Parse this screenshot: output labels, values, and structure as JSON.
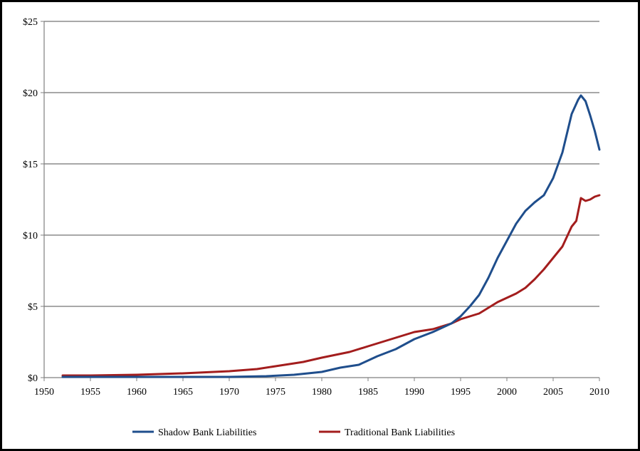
{
  "chart_data": {
    "type": "line",
    "title": "",
    "xlabel": "",
    "ylabel": "",
    "xlim": [
      1950,
      2010
    ],
    "ylim": [
      0,
      25
    ],
    "x_ticks": [
      "1950",
      "1955",
      "1960",
      "1965",
      "1970",
      "1975",
      "1980",
      "1985",
      "1990",
      "1995",
      "2000",
      "2005",
      "2010"
    ],
    "y_ticks": [
      "$0",
      "$5",
      "$10",
      "$15",
      "$20",
      "$25"
    ],
    "grid": "horizontal",
    "legend_position": "bottom",
    "series": [
      {
        "name": "Shadow Bank Liabilities",
        "color": "#1f4e8c",
        "points": [
          [
            1952,
            0.05
          ],
          [
            1955,
            0.05
          ],
          [
            1960,
            0.05
          ],
          [
            1965,
            0.05
          ],
          [
            1970,
            0.05
          ],
          [
            1974,
            0.1
          ],
          [
            1977,
            0.2
          ],
          [
            1980,
            0.4
          ],
          [
            1982,
            0.7
          ],
          [
            1984,
            0.9
          ],
          [
            1986,
            1.5
          ],
          [
            1988,
            2.0
          ],
          [
            1990,
            2.7
          ],
          [
            1992,
            3.2
          ],
          [
            1994,
            3.8
          ],
          [
            1995,
            4.3
          ],
          [
            1996,
            5.0
          ],
          [
            1997,
            5.8
          ],
          [
            1998,
            7.0
          ],
          [
            1999,
            8.4
          ],
          [
            2000,
            9.6
          ],
          [
            2001,
            10.8
          ],
          [
            2002,
            11.7
          ],
          [
            2003,
            12.3
          ],
          [
            2004,
            12.8
          ],
          [
            2005,
            14.0
          ],
          [
            2006,
            15.8
          ],
          [
            2007,
            18.5
          ],
          [
            2007.7,
            19.5
          ],
          [
            2008,
            19.8
          ],
          [
            2008.5,
            19.4
          ],
          [
            2009,
            18.4
          ],
          [
            2009.5,
            17.3
          ],
          [
            2010,
            16.0
          ]
        ]
      },
      {
        "name": "Traditional Bank Liabilities",
        "color": "#a31d1d",
        "points": [
          [
            1952,
            0.15
          ],
          [
            1955,
            0.15
          ],
          [
            1960,
            0.2
          ],
          [
            1965,
            0.3
          ],
          [
            1970,
            0.45
          ],
          [
            1973,
            0.6
          ],
          [
            1975,
            0.8
          ],
          [
            1978,
            1.1
          ],
          [
            1980,
            1.4
          ],
          [
            1983,
            1.8
          ],
          [
            1985,
            2.2
          ],
          [
            1987,
            2.6
          ],
          [
            1990,
            3.2
          ],
          [
            1992,
            3.4
          ],
          [
            1994,
            3.8
          ],
          [
            1995,
            4.1
          ],
          [
            1997,
            4.5
          ],
          [
            1999,
            5.3
          ],
          [
            2001,
            5.9
          ],
          [
            2002,
            6.3
          ],
          [
            2003,
            6.9
          ],
          [
            2004,
            7.6
          ],
          [
            2005,
            8.4
          ],
          [
            2006,
            9.2
          ],
          [
            2007,
            10.6
          ],
          [
            2007.5,
            11.0
          ],
          [
            2008,
            12.6
          ],
          [
            2008.5,
            12.4
          ],
          [
            2009,
            12.5
          ],
          [
            2009.5,
            12.7
          ],
          [
            2010,
            12.8
          ]
        ]
      }
    ]
  }
}
